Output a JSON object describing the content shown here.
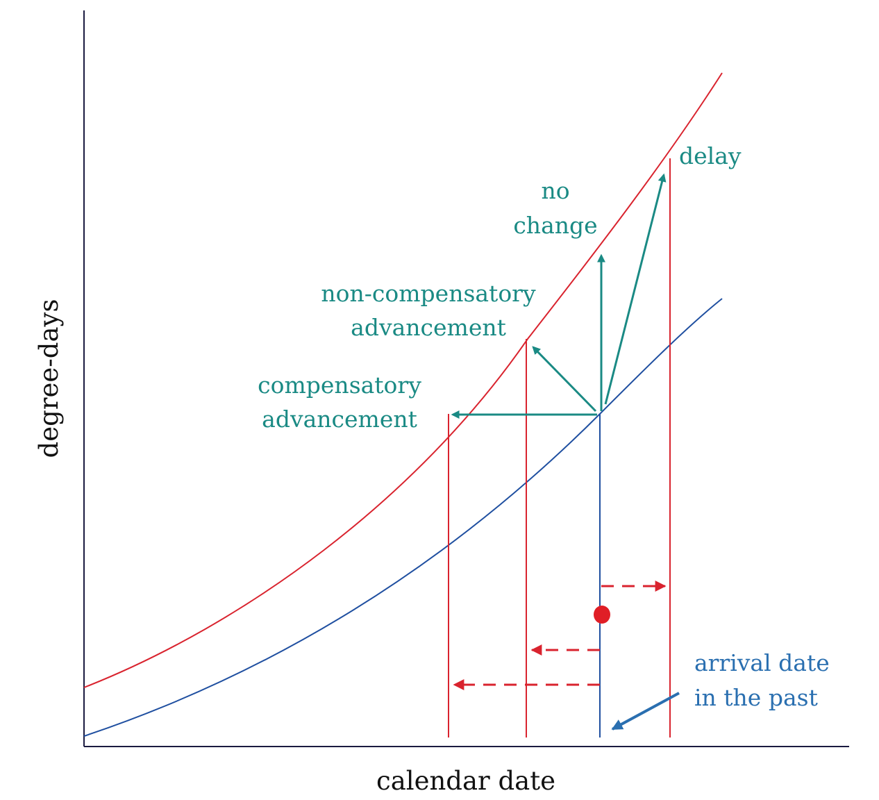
{
  "axes": {
    "x_label": "calendar date",
    "y_label": "degree-days"
  },
  "labels": {
    "delay": "delay",
    "no_change": [
      "no",
      "change"
    ],
    "non_compensatory": [
      "non-compensatory",
      "advancement"
    ],
    "compensatory": [
      "compensatory",
      "advancement"
    ],
    "arrival_past": [
      "arrival date",
      "in the past"
    ]
  },
  "colors": {
    "axis": "#1a1a40",
    "warm_curve": "#d9232e",
    "past_curve": "#1f4fa0",
    "green_arrows": "#1a8a84",
    "marker": "#e01e26",
    "blue_arrow": "#2a6fb0"
  }
}
